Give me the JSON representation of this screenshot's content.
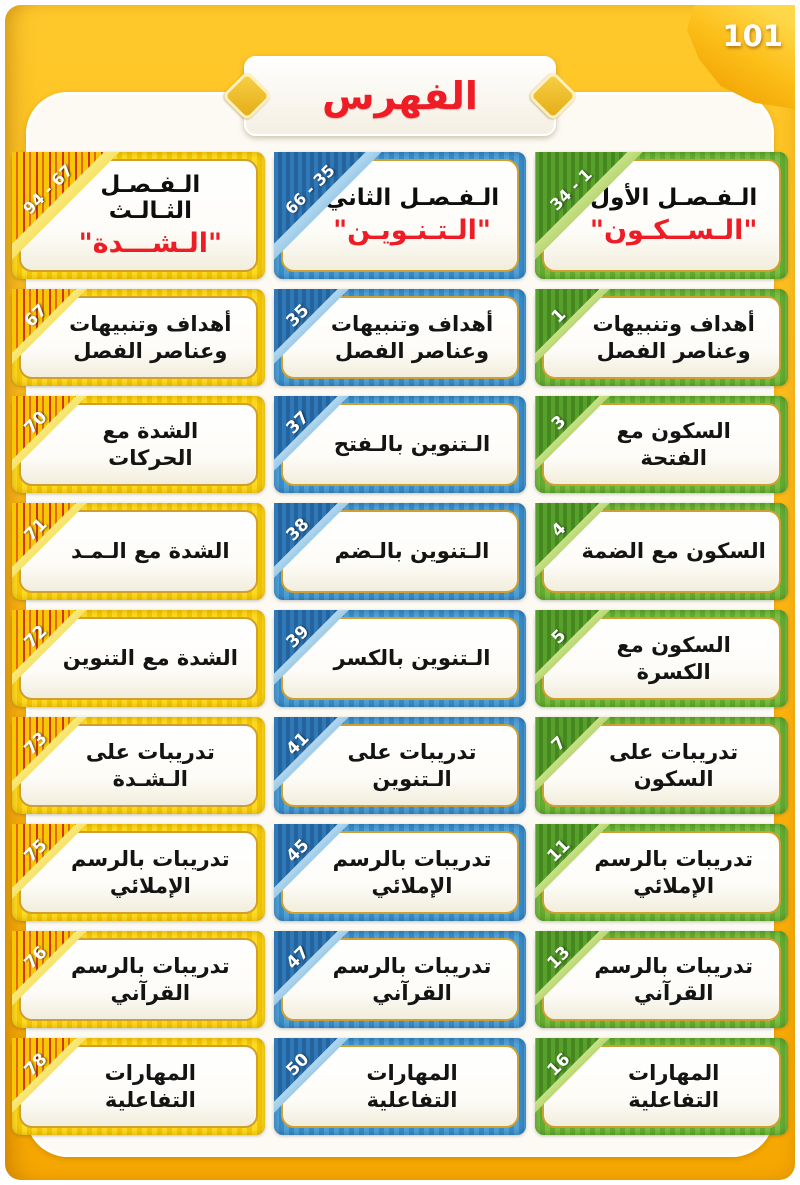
{
  "page": {
    "number": "101",
    "title": "الفهرس"
  },
  "columns": [
    {
      "name": "chapter-1",
      "theme": "green",
      "range": "34 - 1",
      "title": "الـفـصـل الأول",
      "subtitle": "\"الـســكـون\"",
      "items": [
        {
          "label": "أهداف وتنبيهات وعناصر الفصل",
          "page": "1"
        },
        {
          "label": "السكون مع الفتحة",
          "page": "3"
        },
        {
          "label": "السكون مع الضمة",
          "page": "4"
        },
        {
          "label": "السكون مع الكسرة",
          "page": "5"
        },
        {
          "label": "تدريبات على السكون",
          "page": "7"
        },
        {
          "label": "تدريبات بالرسم الإملائي",
          "page": "11"
        },
        {
          "label": "تدريبات بالرسم القرآني",
          "page": "13"
        },
        {
          "label": "المهارات التفاعلية",
          "page": "16"
        }
      ]
    },
    {
      "name": "chapter-2",
      "theme": "blue",
      "range": "66 - 35",
      "title": "الـفـصـل الثاني",
      "subtitle": "\"الـتـنـويـن\"",
      "items": [
        {
          "label": "أهداف وتنبيهات وعناصر الفصل",
          "page": "35"
        },
        {
          "label": "الـتنوين بالـفتح",
          "page": "37"
        },
        {
          "label": "الـتنوين بالـضم",
          "page": "38"
        },
        {
          "label": "الـتنوين بالكسر",
          "page": "39"
        },
        {
          "label": "تدريبات على الـتنوين",
          "page": "41"
        },
        {
          "label": "تدريبات بالرسم الإملائي",
          "page": "45"
        },
        {
          "label": "تدريبات بالرسم القرآني",
          "page": "47"
        },
        {
          "label": "المهارات التفاعلية",
          "page": "50"
        }
      ]
    },
    {
      "name": "chapter-3",
      "theme": "yellow",
      "range": "94 - 67",
      "title": "الـفـصـل الثـالـث",
      "subtitle": "\"الـشـــدة\"",
      "items": [
        {
          "label": "أهداف وتنبيهات وعناصر الفصل",
          "page": "67"
        },
        {
          "label": "الشدة مع الحركات",
          "page": "70"
        },
        {
          "label": "الشدة مع الـمـد",
          "page": "71"
        },
        {
          "label": "الشدة مع التنوين",
          "page": "72"
        },
        {
          "label": "تدريبات على الـشـدة",
          "page": "73"
        },
        {
          "label": "تدريبات بالرسم الإملائي",
          "page": "75"
        },
        {
          "label": "تدريبات بالرسم القرآني",
          "page": "76"
        },
        {
          "label": "المهارات التفاعلية",
          "page": "78"
        }
      ]
    }
  ]
}
